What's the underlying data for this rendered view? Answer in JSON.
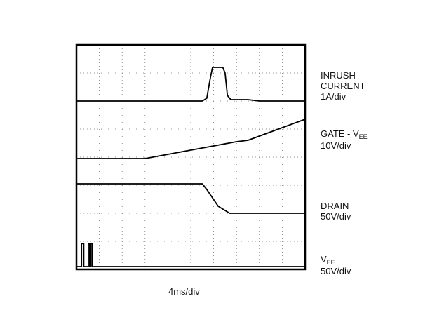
{
  "chart_data": {
    "type": "line",
    "xlabel": "4ms/div",
    "grid": true,
    "divisions": {
      "x": 10,
      "y": 8
    },
    "x_range": [
      0,
      10
    ],
    "y_range": [
      0,
      8
    ],
    "series": [
      {
        "name": "INRUSH CURRENT",
        "scale": "1A/div",
        "color": "#000000",
        "points": [
          [
            0,
            6.0
          ],
          [
            5.5,
            6.0
          ],
          [
            5.7,
            6.1
          ],
          [
            5.85,
            6.8
          ],
          [
            5.95,
            7.2
          ],
          [
            6.4,
            7.2
          ],
          [
            6.5,
            7.0
          ],
          [
            6.6,
            6.2
          ],
          [
            6.75,
            6.05
          ],
          [
            7.5,
            6.05
          ],
          [
            8.0,
            6.0
          ],
          [
            10,
            6.0
          ]
        ]
      },
      {
        "name": "GATE - VEE",
        "scale": "10V/div",
        "color": "#000000",
        "points": [
          [
            0,
            3.95
          ],
          [
            3.0,
            3.95
          ],
          [
            4.0,
            4.1
          ],
          [
            5.0,
            4.25
          ],
          [
            6.0,
            4.4
          ],
          [
            7.0,
            4.55
          ],
          [
            7.5,
            4.6
          ],
          [
            8.0,
            4.75
          ],
          [
            9.0,
            5.05
          ],
          [
            10,
            5.35
          ]
        ]
      },
      {
        "name": "DRAIN",
        "scale": "50V/div",
        "color": "#000000",
        "points": [
          [
            0,
            3.05
          ],
          [
            5.5,
            3.05
          ],
          [
            5.7,
            2.85
          ],
          [
            6.2,
            2.25
          ],
          [
            6.7,
            2.0
          ],
          [
            8.0,
            2.0
          ],
          [
            10,
            2.0
          ]
        ]
      },
      {
        "name": "VEE",
        "scale": "50V/div",
        "color": "#000000",
        "points": [
          [
            0,
            0.1
          ],
          [
            0.22,
            0.1
          ],
          [
            0.22,
            0.92
          ],
          [
            0.32,
            0.92
          ],
          [
            0.32,
            0.1
          ],
          [
            0.52,
            0.1
          ],
          [
            0.52,
            0.92
          ],
          [
            0.58,
            0.92
          ],
          [
            0.58,
            0.1
          ],
          [
            0.62,
            0.1
          ],
          [
            0.62,
            0.92
          ],
          [
            0.68,
            0.92
          ],
          [
            0.68,
            0.1
          ],
          [
            10,
            0.1
          ]
        ]
      }
    ]
  },
  "labels": {
    "inrush_1": "INRUSH",
    "inrush_2": "CURRENT",
    "inrush_3": "1A/div",
    "gate_1": "GATE - V",
    "gate_sub": "EE",
    "gate_2": "10V/div",
    "drain_1": "DRAIN",
    "drain_2": "50V/div",
    "vee_1": "V",
    "vee_sub": "EE",
    "vee_2": "50V/div"
  }
}
